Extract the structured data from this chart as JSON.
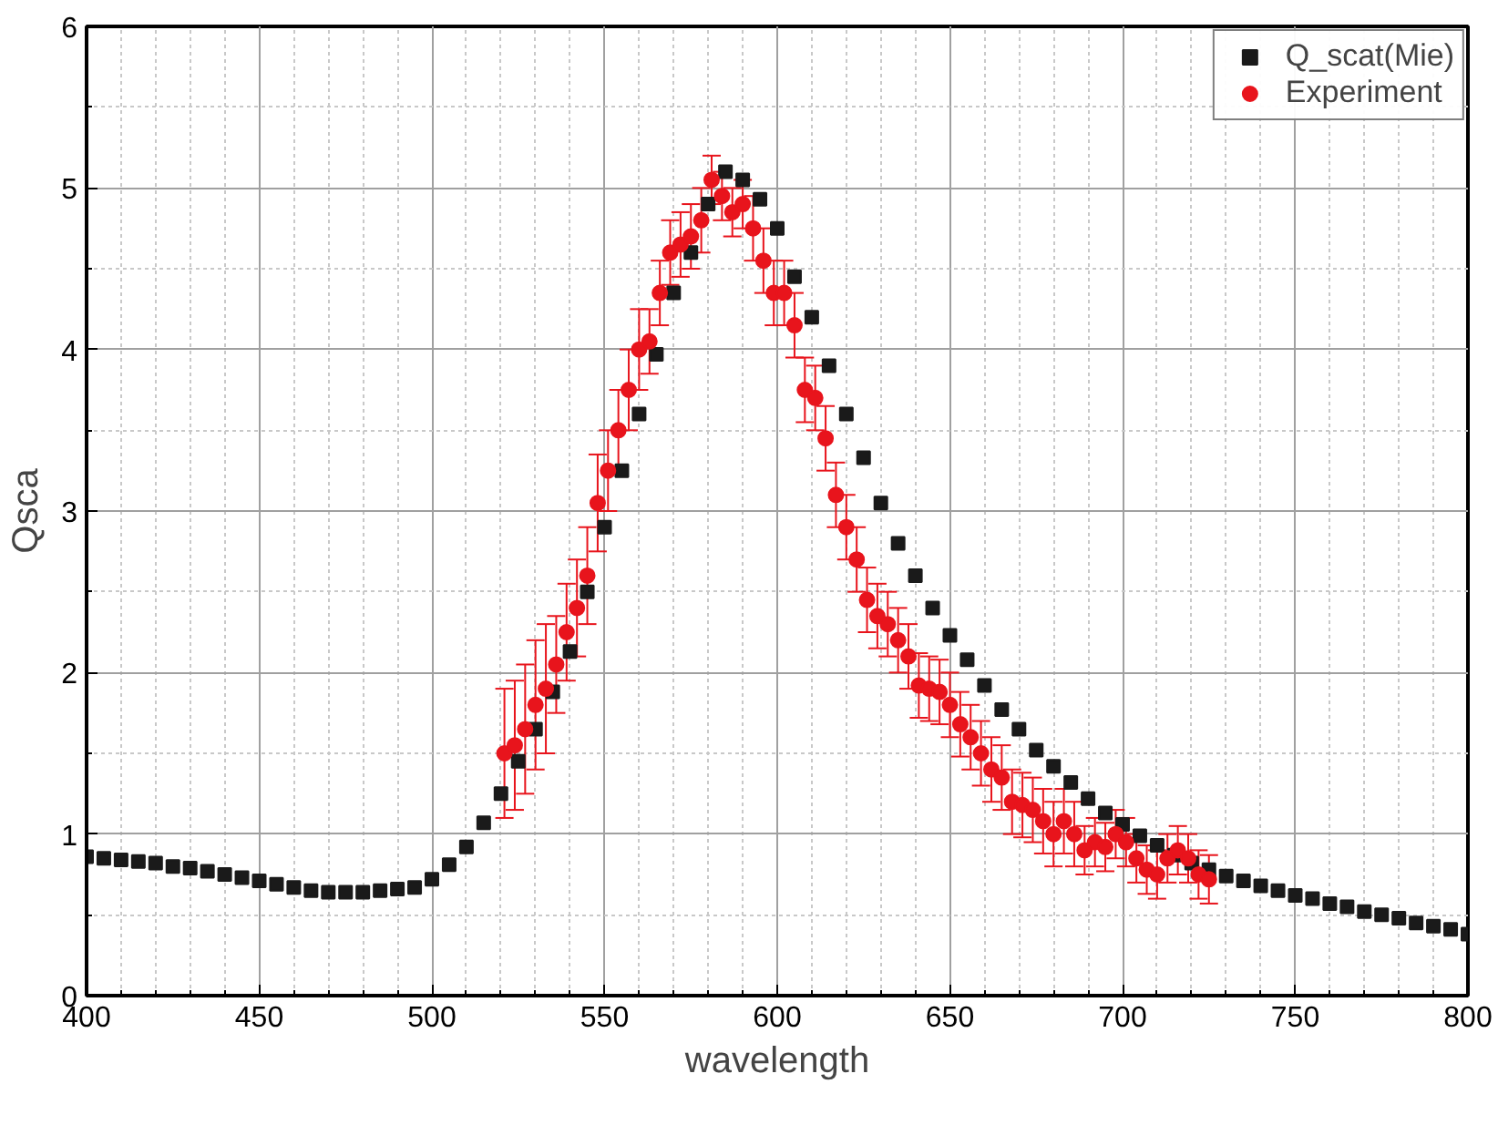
{
  "chart_data": {
    "type": "scatter",
    "xlabel": "wavelength",
    "ylabel": "Qsca",
    "xlim": [
      400,
      800
    ],
    "ylim": [
      0,
      6
    ],
    "xticks": [
      400,
      450,
      500,
      550,
      600,
      650,
      700,
      750,
      800
    ],
    "yticks": [
      0,
      1,
      2,
      3,
      4,
      5,
      6
    ],
    "grid": true,
    "legend": "top right",
    "series": [
      {
        "name": "Q_scat(Mie)",
        "color": "#1a1a1a",
        "marker": "square",
        "x": [
          400,
          405,
          410,
          415,
          420,
          425,
          430,
          435,
          440,
          445,
          450,
          455,
          460,
          465,
          470,
          475,
          480,
          485,
          490,
          495,
          500,
          505,
          510,
          515,
          520,
          525,
          530,
          535,
          540,
          545,
          550,
          555,
          560,
          565,
          570,
          575,
          580,
          585,
          590,
          595,
          600,
          605,
          610,
          615,
          620,
          625,
          630,
          635,
          640,
          645,
          650,
          655,
          660,
          665,
          670,
          675,
          680,
          685,
          690,
          695,
          700,
          705,
          710,
          715,
          720,
          725,
          730,
          735,
          740,
          745,
          750,
          755,
          760,
          765,
          770,
          775,
          780,
          785,
          790,
          795,
          800
        ],
        "values": [
          0.86,
          0.85,
          0.84,
          0.83,
          0.82,
          0.8,
          0.79,
          0.77,
          0.75,
          0.73,
          0.71,
          0.69,
          0.67,
          0.65,
          0.64,
          0.64,
          0.64,
          0.65,
          0.66,
          0.67,
          0.72,
          0.81,
          0.92,
          1.07,
          1.25,
          1.45,
          1.65,
          1.88,
          2.13,
          2.5,
          2.9,
          3.25,
          3.6,
          3.97,
          4.35,
          4.6,
          4.9,
          5.1,
          5.05,
          4.93,
          4.75,
          4.45,
          4.2,
          3.9,
          3.6,
          3.33,
          3.05,
          2.8,
          2.6,
          2.4,
          2.23,
          2.08,
          1.92,
          1.77,
          1.65,
          1.52,
          1.42,
          1.32,
          1.22,
          1.13,
          1.06,
          0.99,
          0.93,
          0.87,
          0.82,
          0.78,
          0.74,
          0.71,
          0.68,
          0.65,
          0.62,
          0.6,
          0.57,
          0.55,
          0.52,
          0.5,
          0.48,
          0.45,
          0.43,
          0.41,
          0.38
        ]
      },
      {
        "name": "Experiment",
        "color": "#e8141c",
        "marker": "circle",
        "x": [
          521,
          524,
          527,
          530,
          533,
          536,
          539,
          542,
          545,
          548,
          551,
          554,
          557,
          560,
          563,
          566,
          569,
          572,
          575,
          578,
          581,
          584,
          587,
          590,
          593,
          596,
          599,
          602,
          605,
          608,
          611,
          614,
          617,
          620,
          623,
          626,
          629,
          632,
          635,
          638,
          641,
          644,
          647,
          650,
          653,
          656,
          659,
          662,
          665,
          668,
          671,
          674,
          677,
          680,
          683,
          686,
          689,
          692,
          695,
          698,
          701,
          704,
          707,
          710,
          713,
          716,
          719,
          722,
          725
        ],
        "values": [
          1.5,
          1.55,
          1.65,
          1.8,
          1.9,
          2.05,
          2.25,
          2.4,
          2.6,
          3.05,
          3.25,
          3.5,
          3.75,
          4.0,
          4.05,
          4.35,
          4.6,
          4.65,
          4.7,
          4.8,
          5.05,
          4.95,
          4.85,
          4.9,
          4.75,
          4.55,
          4.35,
          4.35,
          4.15,
          3.75,
          3.7,
          3.45,
          3.1,
          2.9,
          2.7,
          2.45,
          2.35,
          2.3,
          2.2,
          2.1,
          1.92,
          1.9,
          1.88,
          1.8,
          1.68,
          1.6,
          1.5,
          1.4,
          1.35,
          1.2,
          1.18,
          1.15,
          1.08,
          1.0,
          1.08,
          1.0,
          0.9,
          0.95,
          0.92,
          1.0,
          0.95,
          0.85,
          0.78,
          0.75,
          0.85,
          0.9,
          0.85,
          0.75,
          0.72
        ],
        "errors": [
          0.4,
          0.4,
          0.4,
          0.4,
          0.4,
          0.3,
          0.3,
          0.3,
          0.3,
          0.3,
          0.25,
          0.25,
          0.25,
          0.25,
          0.2,
          0.2,
          0.2,
          0.2,
          0.2,
          0.2,
          0.15,
          0.15,
          0.15,
          0.15,
          0.2,
          0.2,
          0.2,
          0.2,
          0.2,
          0.2,
          0.2,
          0.2,
          0.2,
          0.2,
          0.2,
          0.2,
          0.2,
          0.2,
          0.2,
          0.2,
          0.2,
          0.2,
          0.2,
          0.2,
          0.2,
          0.2,
          0.2,
          0.2,
          0.2,
          0.2,
          0.2,
          0.2,
          0.2,
          0.2,
          0.2,
          0.2,
          0.15,
          0.15,
          0.15,
          0.15,
          0.15,
          0.15,
          0.15,
          0.15,
          0.15,
          0.15,
          0.15,
          0.15,
          0.15
        ]
      }
    ]
  }
}
